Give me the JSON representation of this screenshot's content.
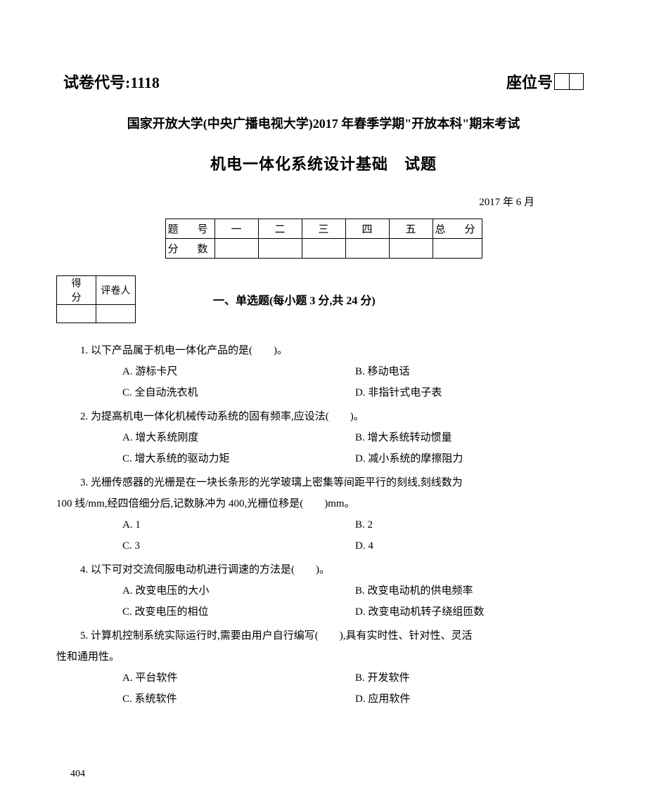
{
  "header": {
    "paper_code_label": "试卷代号:",
    "paper_code_value": "1118",
    "seat_label": "座位号"
  },
  "university_line": "国家开放大学(中央广播电视大学)2017 年春季学期\"开放本科\"期末考试",
  "course_title": "机电一体化系统设计基础　试题",
  "date": "2017 年 6 月",
  "score_table": {
    "row1_label": "题　号",
    "cols": [
      "一",
      "二",
      "三",
      "四",
      "五"
    ],
    "total_label": "总　分",
    "row2_label": "分　数"
  },
  "grader_box": {
    "score_label": "得　分",
    "grader_label": "评卷人"
  },
  "section1_title": "一、单选题(每小题 3 分,共 24 分)",
  "q1": {
    "stem": "1. 以下产品属于机电一体化产品的是(　　)。",
    "a": "A. 游标卡尺",
    "b": "B. 移动电话",
    "c": "C. 全自动洗衣机",
    "d": "D. 非指针式电子表"
  },
  "q2": {
    "stem": "2. 为提高机电一体化机械传动系统的固有频率,应设法(　　)。",
    "a": "A. 增大系统刚度",
    "b": "B. 增大系统转动惯量",
    "c": "C. 增大系统的驱动力矩",
    "d": "D. 减小系统的摩擦阻力"
  },
  "q3": {
    "stem1": "3. 光栅传感器的光栅是在一块长条形的光学玻璃上密集等间距平行的刻线,刻线数为",
    "stem2": "100 线/mm,经四倍细分后,记数脉冲为 400,光栅位移是(　　)mm。",
    "a": "A. 1",
    "b": "B. 2",
    "c": "C. 3",
    "d": "D. 4"
  },
  "q4": {
    "stem": "4. 以下可对交流伺服电动机进行调速的方法是(　　)。",
    "a": "A. 改变电压的大小",
    "b": "B. 改变电动机的供电频率",
    "c": "C. 改变电压的相位",
    "d": "D. 改变电动机转子绕组匝数"
  },
  "q5": {
    "stem1": "5. 计算机控制系统实际运行时,需要由用户自行编写(　　),具有实时性、针对性、灵活",
    "stem2": "性和通用性。",
    "a": "A. 平台软件",
    "b": "B. 开发软件",
    "c": "C. 系统软件",
    "d": "D. 应用软件"
  },
  "page_number": "404",
  "colors": {
    "text": "#000000",
    "bg": "#ffffff",
    "border": "#000000"
  }
}
